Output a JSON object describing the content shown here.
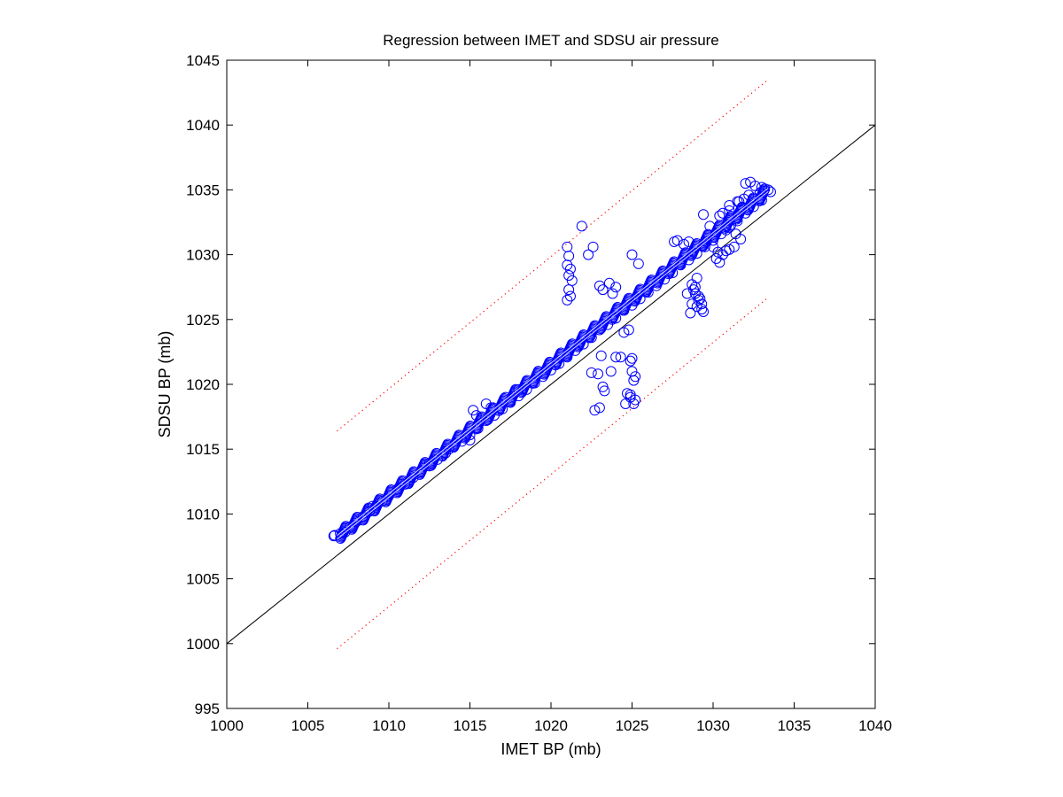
{
  "chart_data": {
    "type": "scatter",
    "title": "Regression between IMET and SDSU air pressure",
    "xlabel": "IMET BP (mb)",
    "ylabel": "SDSU BP (mb)",
    "xlim": [
      1000,
      1040
    ],
    "ylim": [
      995,
      1045
    ],
    "xticks": [
      "1000",
      "1005",
      "1010",
      "1015",
      "1020",
      "1025",
      "1030",
      "1035",
      "1040"
    ],
    "yticks": [
      "995",
      "1000",
      "1005",
      "1010",
      "1015",
      "1020",
      "1025",
      "1030",
      "1035",
      "1040",
      "1045"
    ],
    "grid": false,
    "legend": "none",
    "colors": {
      "points": "#0000ff",
      "reference_line": "#000000",
      "bounds": "#ff0000"
    },
    "reference_line": {
      "style": "solid",
      "x": [
        1000,
        1040
      ],
      "y": [
        1000,
        1040
      ]
    },
    "bound_lines": [
      {
        "style": "dotted",
        "x": [
          1006.8,
          1033.3
        ],
        "y": [
          1016.4,
          1043.4
        ]
      },
      {
        "style": "dotted",
        "x": [
          1006.8,
          1033.3
        ],
        "y": [
          999.6,
          1026.6
        ]
      }
    ],
    "fit_line": {
      "x": [
        1006.8,
        1033.4
      ],
      "y": [
        1008.2,
        1035.0
      ]
    },
    "series": [
      {
        "marker": "circle",
        "x": [
          1006.6,
          1007.0,
          1007.3,
          1007.6,
          1008.0,
          1008.4,
          1008.8,
          1009.2,
          1009.6,
          1010.0,
          1010.5,
          1011.0,
          1011.5,
          1012.0,
          1012.5,
          1013.0,
          1013.5,
          1014.0,
          1014.5,
          1015.0,
          1015.5,
          1016.0,
          1016.5,
          1017.0,
          1017.5,
          1018.0,
          1018.5,
          1019.0,
          1019.5,
          1020.0,
          1020.5,
          1021.0,
          1021.5,
          1022.0,
          1022.5,
          1023.0,
          1023.5,
          1024.0,
          1024.5,
          1025.0,
          1025.5,
          1026.0,
          1026.5,
          1027.0,
          1027.5,
          1028.0,
          1028.5,
          1029.0,
          1029.5,
          1030.0,
          1030.5,
          1031.0,
          1031.5,
          1032.0,
          1032.5,
          1033.0,
          1033.4,
          1015.2,
          1015.4,
          1016.0,
          1016.3,
          1017.2,
          1018.0,
          1012.5,
          1011.0,
          1009.0,
          1013.7,
          1015.0,
          1021.0,
          1021.1,
          1021.0,
          1021.2,
          1021.1,
          1021.3,
          1021.1,
          1021.0,
          1021.2,
          1021.9,
          1022.6,
          1022.3,
          1023.0,
          1023.2,
          1023.6,
          1024.0,
          1023.8,
          1025.0,
          1025.4,
          1022.7,
          1023.0,
          1023.1,
          1022.9,
          1023.3,
          1023.2,
          1022.5,
          1023.7,
          1024.0,
          1024.3,
          1024.5,
          1024.8,
          1025.0,
          1024.9,
          1025.0,
          1025.1,
          1025.2,
          1024.7,
          1024.9,
          1025.2,
          1024.6,
          1025.1,
          1024.9,
          1027.6,
          1027.8,
          1028.2,
          1028.5,
          1029.0,
          1028.9,
          1028.9,
          1029.1,
          1029.2,
          1028.7,
          1029.3,
          1029.0,
          1028.4,
          1028.7,
          1029.1,
          1029.3,
          1028.6,
          1029.4,
          1028.8,
          1029.6,
          1030.0,
          1030.3,
          1030.6,
          1030.8,
          1031.0,
          1031.3,
          1031.7,
          1030.2,
          1030.4,
          1030.8,
          1031.1,
          1031.4,
          1029.4,
          1029.8,
          1030.4,
          1031.0,
          1031.5,
          1031.0,
          1030.6,
          1032.0,
          1032.3,
          1032.6,
          1033.0,
          1032.9,
          1032.2,
          1031.9,
          1031.6
        ],
        "y": [
          1008.3,
          1008.5,
          1008.6,
          1009.0,
          1009.4,
          1009.8,
          1010.2,
          1010.6,
          1011.0,
          1011.4,
          1011.9,
          1012.3,
          1012.8,
          1013.3,
          1013.7,
          1014.2,
          1014.7,
          1015.2,
          1015.6,
          1016.1,
          1016.6,
          1017.2,
          1017.6,
          1018.1,
          1018.6,
          1019.1,
          1019.6,
          1020.1,
          1020.6,
          1021.1,
          1021.6,
          1022.1,
          1022.6,
          1023.1,
          1023.6,
          1024.2,
          1024.6,
          1025.1,
          1025.7,
          1026.1,
          1026.6,
          1027.1,
          1027.6,
          1028.1,
          1028.6,
          1029.2,
          1029.6,
          1030.1,
          1030.6,
          1031.1,
          1031.6,
          1032.1,
          1032.6,
          1033.2,
          1033.7,
          1034.2,
          1035.0,
          1018.0,
          1017.6,
          1018.5,
          1018.2,
          1019.0,
          1019.6,
          1013.9,
          1012.3,
          1010.6,
          1015.0,
          1015.7,
          1030.6,
          1029.9,
          1029.2,
          1028.9,
          1028.4,
          1028.0,
          1027.3,
          1026.5,
          1026.8,
          1032.2,
          1030.6,
          1030.0,
          1027.6,
          1027.3,
          1027.8,
          1027.5,
          1027.0,
          1030.0,
          1029.3,
          1018.0,
          1018.2,
          1022.2,
          1020.8,
          1019.5,
          1019.8,
          1020.9,
          1021.0,
          1022.1,
          1022.1,
          1024.0,
          1024.2,
          1022.0,
          1021.8,
          1021.0,
          1020.3,
          1020.6,
          1019.3,
          1019.0,
          1018.8,
          1018.5,
          1018.5,
          1019.2,
          1031.0,
          1031.1,
          1030.8,
          1031.0,
          1028.2,
          1027.5,
          1027.0,
          1026.8,
          1026.6,
          1026.2,
          1026.2,
          1026.0,
          1027.0,
          1027.7,
          1026.5,
          1025.8,
          1025.5,
          1025.6,
          1027.3,
          1031.0,
          1030.6,
          1030.2,
          1030.0,
          1030.3,
          1030.4,
          1030.6,
          1031.2,
          1029.7,
          1029.4,
          1031.9,
          1032.3,
          1031.6,
          1033.1,
          1032.2,
          1033.0,
          1033.8,
          1034.1,
          1033.4,
          1033.2,
          1035.5,
          1035.6,
          1035.3,
          1035.2,
          1034.8,
          1034.6,
          1034.3,
          1034.1
        ]
      }
    ]
  }
}
